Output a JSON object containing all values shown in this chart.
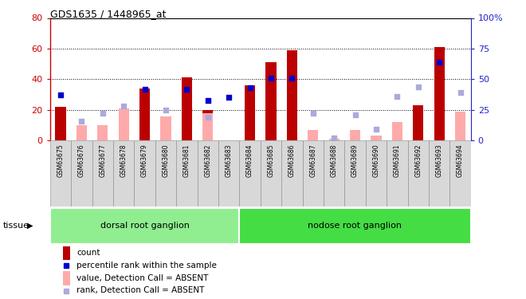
{
  "title": "GDS1635 / 1448965_at",
  "samples": [
    "GSM63675",
    "GSM63676",
    "GSM63677",
    "GSM63678",
    "GSM63679",
    "GSM63680",
    "GSM63681",
    "GSM63682",
    "GSM63683",
    "GSM63684",
    "GSM63685",
    "GSM63686",
    "GSM63687",
    "GSM63688",
    "GSM63689",
    "GSM63690",
    "GSM63691",
    "GSM63692",
    "GSM63693",
    "GSM63694"
  ],
  "count_values": [
    22,
    null,
    null,
    null,
    34,
    null,
    41,
    20,
    null,
    36,
    51,
    59,
    null,
    null,
    null,
    null,
    null,
    23,
    61,
    null
  ],
  "count_absent_values": [
    null,
    10,
    10,
    21,
    null,
    16,
    null,
    18,
    null,
    null,
    null,
    null,
    7,
    1,
    7,
    3,
    12,
    null,
    null,
    19
  ],
  "rank_values": [
    37,
    null,
    null,
    null,
    42,
    null,
    42,
    33,
    35,
    43,
    51,
    51,
    null,
    null,
    null,
    null,
    null,
    null,
    64,
    null
  ],
  "rank_absent_values": [
    null,
    16,
    22,
    28,
    null,
    25,
    null,
    19,
    null,
    null,
    null,
    null,
    22,
    2,
    21,
    9,
    36,
    44,
    null,
    39
  ],
  "left_ylim": [
    0,
    80
  ],
  "right_ylim": [
    0,
    100
  ],
  "left_yticks": [
    0,
    20,
    40,
    60,
    80
  ],
  "right_yticks": [
    0,
    25,
    50,
    75,
    100
  ],
  "right_yticklabels": [
    "0",
    "25",
    "50",
    "75",
    "100%"
  ],
  "grid_lines": [
    20,
    40,
    60
  ],
  "group1_label": "dorsal root ganglion",
  "group1_samples": 9,
  "group2_label": "nodose root ganglion",
  "group2_samples": 11,
  "group1_color": "#90ee90",
  "group2_color": "#44dd44",
  "bar_color": "#bb0000",
  "bar_absent_color": "#ffaaaa",
  "rank_color": "#0000cc",
  "rank_absent_color": "#aaaadd",
  "left_axis_color": "#cc0000",
  "right_axis_color": "#2222cc",
  "xtick_bg": "#d0d0d0"
}
